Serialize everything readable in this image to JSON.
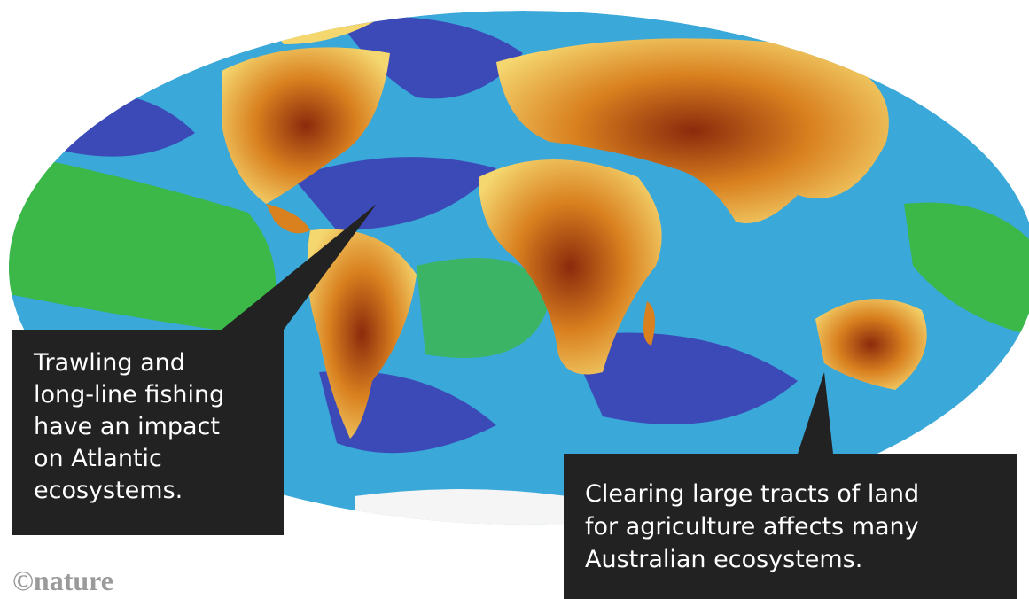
{
  "callouts": [
    {
      "lines": [
        "Trawling and",
        "long-line fishing",
        "have an impact",
        "on Atlantic",
        "ecosystems."
      ]
    },
    {
      "lines": [
        "Clearing large tracts of land",
        "for agriculture affects many",
        "Australian ecosystems."
      ]
    }
  ],
  "logo": "©nature"
}
